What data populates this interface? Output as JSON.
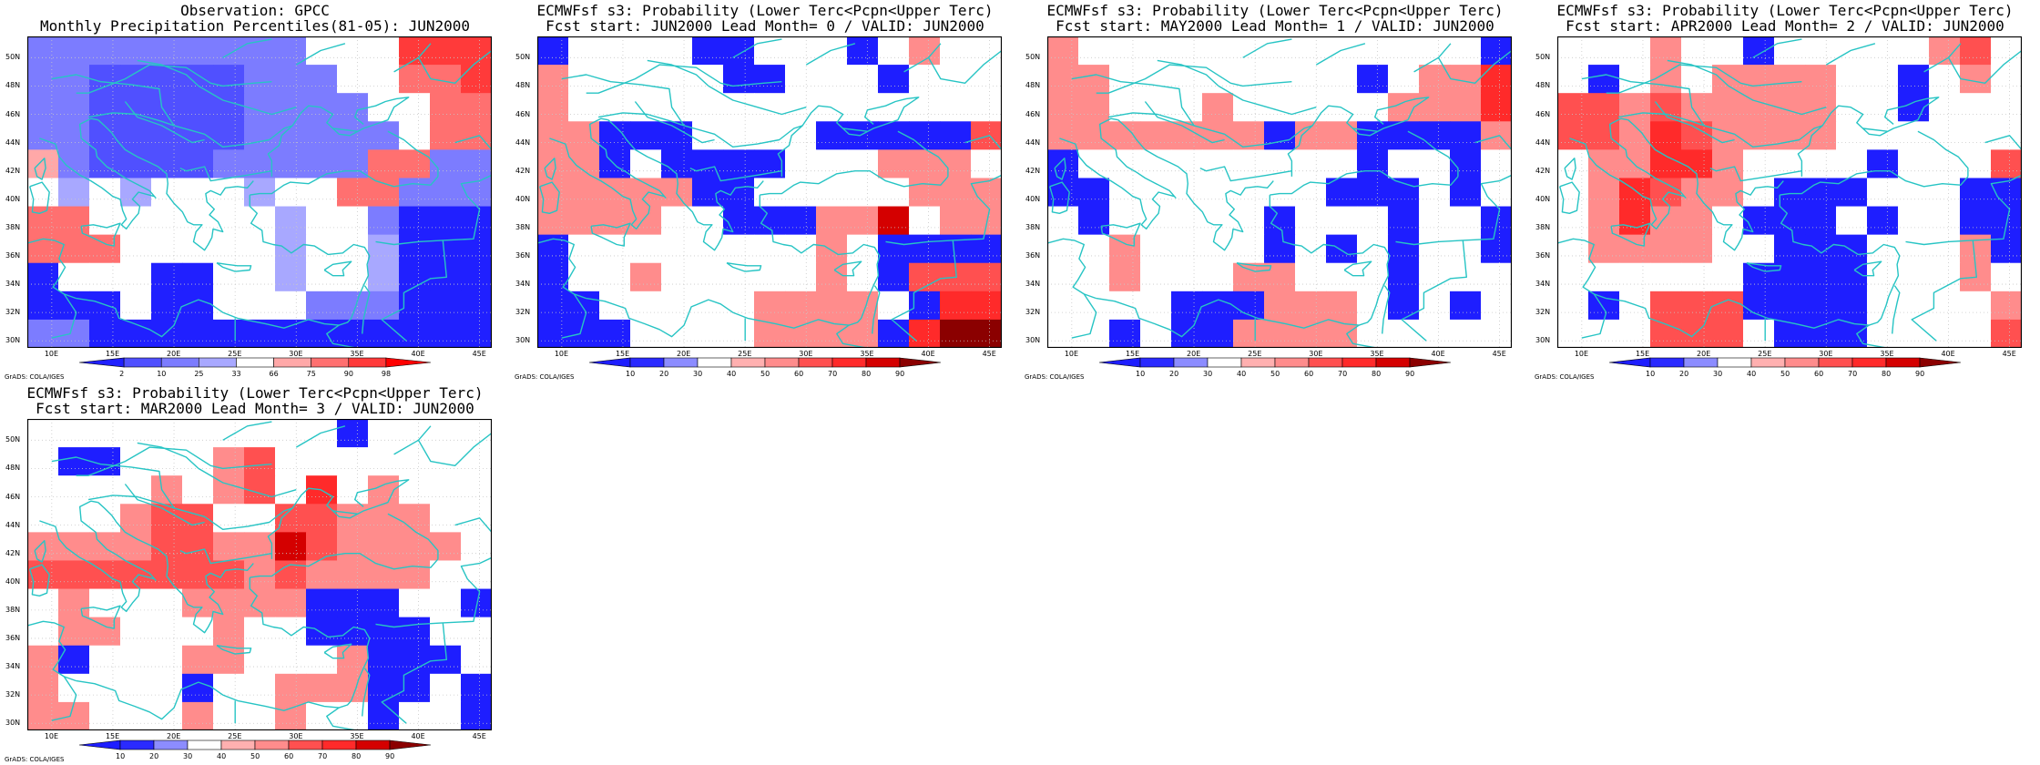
{
  "colors": {
    "frame": "#000000",
    "coast": "#27c4c4",
    "grid": "#c8c8c8"
  },
  "panels": [
    {
      "id": "obs",
      "title_line1": "Observation: GPCC",
      "title_line2": "Monthly Precipitation Percentiles(81-05): JUN2000",
      "cbar_labels": [
        "2",
        "10",
        "25",
        "33",
        "66",
        "75",
        "90",
        "98"
      ],
      "cbar_colors": [
        "#2020ff",
        "#5050ff",
        "#7c7cff",
        "#a8a8ff",
        "#ffffff",
        "#ffa8a8",
        "#ff7070",
        "#ff3a3a",
        "#ff0000"
      ],
      "grid": [
        [
          2,
          2,
          2,
          2,
          2,
          2,
          2,
          2,
          2,
          4,
          4,
          4,
          7,
          7,
          7
        ],
        [
          2,
          2,
          1,
          1,
          1,
          1,
          1,
          2,
          2,
          2,
          4,
          4,
          6,
          6,
          7
        ],
        [
          2,
          2,
          1,
          1,
          1,
          1,
          1,
          2,
          2,
          2,
          2,
          4,
          4,
          6,
          6
        ],
        [
          2,
          2,
          1,
          1,
          1,
          1,
          1,
          2,
          2,
          2,
          2,
          2,
          4,
          6,
          6
        ],
        [
          5,
          2,
          1,
          1,
          1,
          1,
          2,
          2,
          2,
          2,
          2,
          6,
          6,
          2,
          2
        ],
        [
          4,
          3,
          4,
          3,
          4,
          4,
          4,
          3,
          4,
          4,
          6,
          6,
          2,
          2,
          2
        ],
        [
          6,
          6,
          4,
          4,
          4,
          4,
          4,
          4,
          3,
          4,
          4,
          2,
          0,
          0,
          0
        ],
        [
          6,
          6,
          6,
          4,
          4,
          4,
          4,
          4,
          3,
          4,
          4,
          3,
          0,
          0,
          0
        ],
        [
          0,
          4,
          4,
          4,
          0,
          0,
          4,
          4,
          3,
          4,
          4,
          3,
          0,
          0,
          0
        ],
        [
          0,
          0,
          0,
          4,
          0,
          0,
          4,
          4,
          4,
          2,
          2,
          2,
          0,
          0,
          0
        ],
        [
          2,
          2,
          0,
          0,
          0,
          0,
          0,
          0,
          0,
          0,
          0,
          0,
          0,
          0,
          0
        ]
      ]
    },
    {
      "id": "lead0",
      "title_line1": "ECMWFsf s3: Probability (Lower Terc<Pcpn<Upper Terc)",
      "title_line2": "Fcst start: JUN2000  Lead Month= 0 / VALID: JUN2000",
      "cbar_labels": [
        "10",
        "20",
        "30",
        "40",
        "50",
        "60",
        "70",
        "80",
        "90"
      ],
      "cbar_colors": [
        "#1e1eff",
        "#2a2aff",
        "#8c8cff",
        "#ffffff",
        "#ffb0b0",
        "#ff8c8c",
        "#ff5050",
        "#ff2a2a",
        "#d40000",
        "#8b0000"
      ],
      "grid": [
        [
          0,
          3,
          3,
          3,
          3,
          0,
          0,
          3,
          3,
          3,
          0,
          3,
          5,
          3,
          3
        ],
        [
          5,
          3,
          3,
          3,
          3,
          3,
          0,
          0,
          3,
          3,
          3,
          0,
          3,
          3,
          3
        ],
        [
          5,
          3,
          3,
          3,
          3,
          3,
          3,
          3,
          3,
          3,
          3,
          3,
          3,
          3,
          3
        ],
        [
          5,
          5,
          0,
          0,
          0,
          3,
          3,
          3,
          3,
          0,
          0,
          0,
          0,
          0,
          6
        ],
        [
          5,
          5,
          0,
          3,
          0,
          0,
          0,
          0,
          3,
          3,
          3,
          5,
          5,
          5,
          3
        ],
        [
          5,
          5,
          5,
          5,
          5,
          0,
          0,
          3,
          3,
          3,
          3,
          3,
          5,
          5,
          5
        ],
        [
          5,
          5,
          5,
          5,
          3,
          3,
          0,
          0,
          0,
          5,
          5,
          8,
          3,
          5,
          5
        ],
        [
          0,
          3,
          3,
          3,
          3,
          3,
          3,
          3,
          3,
          5,
          3,
          0,
          0,
          0,
          0
        ],
        [
          0,
          3,
          3,
          5,
          3,
          3,
          3,
          3,
          3,
          5,
          3,
          0,
          6,
          6,
          6
        ],
        [
          0,
          0,
          3,
          3,
          3,
          3,
          3,
          5,
          5,
          5,
          5,
          3,
          0,
          7,
          7
        ],
        [
          0,
          0,
          0,
          3,
          3,
          3,
          3,
          5,
          5,
          5,
          5,
          0,
          7,
          9,
          9
        ]
      ]
    },
    {
      "id": "lead1",
      "title_line1": "ECMWFsf s3: Probability (Lower Terc<Pcpn<Upper Terc)",
      "title_line2": "Fcst start: MAY2000  Lead Month= 1 / VALID: JUN2000",
      "cbar_labels": [
        "10",
        "20",
        "30",
        "40",
        "50",
        "60",
        "70",
        "80",
        "90"
      ],
      "cbar_colors": [
        "#1e1eff",
        "#2a2aff",
        "#8c8cff",
        "#ffffff",
        "#ffb0b0",
        "#ff8c8c",
        "#ff5050",
        "#ff2a2a",
        "#d40000",
        "#8b0000"
      ],
      "grid": [
        [
          5,
          3,
          3,
          3,
          3,
          3,
          3,
          3,
          3,
          3,
          3,
          3,
          3,
          3,
          0
        ],
        [
          5,
          5,
          3,
          3,
          3,
          3,
          3,
          3,
          3,
          3,
          0,
          3,
          5,
          5,
          7
        ],
        [
          5,
          5,
          3,
          3,
          3,
          5,
          3,
          3,
          3,
          3,
          3,
          5,
          5,
          5,
          7
        ],
        [
          5,
          5,
          5,
          5,
          5,
          5,
          5,
          0,
          5,
          5,
          0,
          0,
          0,
          0,
          5
        ],
        [
          0,
          3,
          3,
          3,
          3,
          3,
          3,
          3,
          3,
          3,
          0,
          3,
          3,
          0,
          3
        ],
        [
          0,
          0,
          3,
          3,
          3,
          3,
          3,
          3,
          3,
          0,
          0,
          0,
          3,
          0,
          3
        ],
        [
          3,
          0,
          3,
          3,
          3,
          3,
          3,
          0,
          3,
          3,
          3,
          0,
          3,
          3,
          0
        ],
        [
          3,
          3,
          5,
          3,
          3,
          3,
          3,
          0,
          3,
          0,
          3,
          0,
          3,
          3,
          0
        ],
        [
          3,
          3,
          5,
          3,
          3,
          3,
          5,
          5,
          3,
          3,
          3,
          0,
          3,
          3,
          3
        ],
        [
          3,
          3,
          3,
          3,
          0,
          0,
          0,
          5,
          5,
          5,
          3,
          0,
          3,
          0,
          3
        ],
        [
          3,
          3,
          0,
          3,
          0,
          0,
          5,
          5,
          5,
          5,
          3,
          3,
          3,
          3,
          3
        ]
      ]
    },
    {
      "id": "lead2",
      "title_line1": "ECMWFsf s3: Probability (Lower Terc<Pcpn<Upper Terc)",
      "title_line2": "Fcst start: APR2000  Lead Month= 2 / VALID: JUN2000",
      "cbar_labels": [
        "10",
        "20",
        "30",
        "40",
        "50",
        "60",
        "70",
        "80",
        "90"
      ],
      "cbar_colors": [
        "#1e1eff",
        "#2a2aff",
        "#8c8cff",
        "#ffffff",
        "#ffb0b0",
        "#ff8c8c",
        "#ff5050",
        "#ff2a2a",
        "#d40000",
        "#8b0000"
      ],
      "grid": [
        [
          3,
          3,
          3,
          5,
          3,
          3,
          0,
          3,
          3,
          3,
          3,
          3,
          5,
          6,
          3
        ],
        [
          3,
          0,
          3,
          5,
          3,
          5,
          5,
          5,
          5,
          3,
          3,
          0,
          3,
          5,
          3
        ],
        [
          6,
          6,
          5,
          6,
          5,
          5,
          5,
          5,
          5,
          3,
          3,
          0,
          3,
          3,
          3
        ],
        [
          6,
          6,
          5,
          7,
          6,
          5,
          5,
          5,
          5,
          3,
          3,
          3,
          3,
          3,
          3
        ],
        [
          3,
          5,
          5,
          7,
          7,
          5,
          3,
          3,
          3,
          3,
          0,
          3,
          3,
          3,
          6
        ],
        [
          3,
          5,
          7,
          6,
          5,
          5,
          3,
          0,
          0,
          0,
          3,
          3,
          3,
          0,
          0
        ],
        [
          3,
          5,
          7,
          5,
          5,
          3,
          0,
          0,
          0,
          3,
          0,
          3,
          3,
          0,
          0
        ],
        [
          3,
          5,
          5,
          5,
          5,
          3,
          3,
          0,
          0,
          0,
          3,
          3,
          3,
          5,
          0
        ],
        [
          3,
          3,
          3,
          3,
          3,
          3,
          0,
          0,
          0,
          0,
          3,
          3,
          3,
          5,
          3
        ],
        [
          3,
          0,
          3,
          6,
          6,
          6,
          0,
          0,
          0,
          0,
          3,
          3,
          3,
          3,
          5
        ],
        [
          3,
          3,
          3,
          6,
          6,
          6,
          3,
          0,
          0,
          0,
          3,
          3,
          3,
          3,
          6
        ]
      ]
    },
    {
      "id": "lead3",
      "title_line1": "ECMWFsf s3: Probability (Lower Terc<Pcpn<Upper Terc)",
      "title_line2": "Fcst start: MAR2000  Lead Month= 3 / VALID: JUN2000",
      "cbar_labels": [
        "10",
        "20",
        "30",
        "40",
        "50",
        "60",
        "70",
        "80",
        "90"
      ],
      "cbar_colors": [
        "#1e1eff",
        "#2a2aff",
        "#8c8cff",
        "#ffffff",
        "#ffb0b0",
        "#ff8c8c",
        "#ff5050",
        "#ff2a2a",
        "#d40000",
        "#8b0000"
      ],
      "grid": [
        [
          3,
          3,
          3,
          3,
          3,
          3,
          3,
          3,
          3,
          3,
          0,
          3,
          3,
          3,
          3
        ],
        [
          3,
          0,
          0,
          3,
          3,
          3,
          5,
          6,
          3,
          3,
          3,
          3,
          3,
          3,
          3
        ],
        [
          3,
          3,
          3,
          3,
          5,
          3,
          5,
          6,
          3,
          7,
          3,
          5,
          3,
          3,
          3
        ],
        [
          3,
          3,
          3,
          5,
          6,
          6,
          3,
          3,
          6,
          6,
          5,
          5,
          5,
          3,
          3
        ],
        [
          5,
          5,
          5,
          5,
          6,
          6,
          5,
          5,
          8,
          6,
          5,
          5,
          5,
          5,
          3
        ],
        [
          6,
          6,
          6,
          6,
          6,
          6,
          6,
          5,
          6,
          5,
          5,
          5,
          5,
          3,
          3
        ],
        [
          3,
          5,
          3,
          3,
          3,
          5,
          5,
          5,
          5,
          0,
          0,
          0,
          3,
          3,
          0
        ],
        [
          3,
          5,
          5,
          3,
          3,
          3,
          5,
          3,
          3,
          0,
          0,
          0,
          0,
          3,
          3
        ],
        [
          5,
          0,
          3,
          3,
          3,
          5,
          5,
          3,
          3,
          3,
          5,
          0,
          0,
          0,
          3
        ],
        [
          5,
          3,
          3,
          3,
          3,
          0,
          3,
          3,
          5,
          5,
          5,
          0,
          0,
          3,
          0
        ],
        [
          5,
          5,
          3,
          3,
          3,
          5,
          3,
          3,
          5,
          3,
          3,
          0,
          3,
          3,
          0
        ]
      ]
    }
  ],
  "lat_labels": [
    "50N",
    "48N",
    "46N",
    "44N",
    "42N",
    "40N",
    "38N",
    "36N",
    "34N",
    "32N",
    "30N"
  ],
  "lon_labels": [
    "10E",
    "15E",
    "20E",
    "25E",
    "30E",
    "35E",
    "40E",
    "45E"
  ],
  "credit": "GrADS: COLA/IGES"
}
